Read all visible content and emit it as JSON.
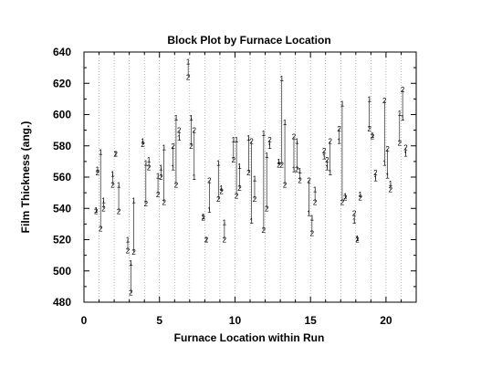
{
  "chart_data": {
    "type": "scatter",
    "title": "Block Plot by Furnace Location",
    "xlabel": "Furnace Location within Run",
    "ylabel": "Film Thickness (ang.)",
    "xlim": [
      0,
      22
    ],
    "ylim": [
      480,
      640
    ],
    "x_ticks": [
      0,
      5,
      10,
      15,
      20
    ],
    "y_ticks": [
      480,
      500,
      520,
      540,
      560,
      580,
      600,
      620,
      640
    ],
    "grid": "vertical dotted lines at each run position",
    "marker_labels": [
      "1",
      "2"
    ],
    "series": [
      {
        "name": "1",
        "points": [
          [
            0.8,
            539
          ],
          [
            0.9,
            565
          ],
          [
            1.1,
            576
          ],
          [
            1.3,
            545
          ],
          [
            1.9,
            562
          ],
          [
            2.1,
            575
          ],
          [
            2.3,
            555
          ],
          [
            2.9,
            520
          ],
          [
            3.1,
            505
          ],
          [
            3.3,
            545
          ],
          [
            3.9,
            583
          ],
          [
            4.1,
            569
          ],
          [
            4.3,
            571
          ],
          [
            4.9,
            561
          ],
          [
            5.1,
            566
          ],
          [
            5.3,
            579
          ],
          [
            5.9,
            566
          ],
          [
            6.1,
            598
          ],
          [
            6.3,
            585
          ],
          [
            6.9,
            634
          ],
          [
            7.1,
            598
          ],
          [
            7.3,
            560
          ],
          [
            7.9,
            535
          ],
          [
            8.1,
            520
          ],
          [
            8.3,
            539
          ],
          [
            8.9,
            569
          ],
          [
            9.1,
            553
          ],
          [
            9.3,
            531
          ],
          [
            9.9,
            584
          ],
          [
            10.1,
            584
          ],
          [
            10.3,
            567
          ],
          [
            10.9,
            585
          ],
          [
            11.1,
            532
          ],
          [
            11.3,
            559
          ],
          [
            11.9,
            588
          ],
          [
            12.1,
            574
          ],
          [
            12.3,
            580
          ],
          [
            12.9,
            570
          ],
          [
            13.1,
            623
          ],
          [
            13.3,
            595
          ],
          [
            13.9,
            565
          ],
          [
            14.1,
            583
          ],
          [
            14.3,
            564
          ],
          [
            14.9,
            537
          ],
          [
            15.1,
            534
          ],
          [
            15.3,
            552
          ],
          [
            15.9,
            573
          ],
          [
            16.1,
            566
          ],
          [
            16.3,
            563
          ],
          [
            16.9,
            583
          ],
          [
            17.1,
            607
          ],
          [
            17.3,
            548
          ],
          [
            17.9,
            532
          ],
          [
            18.1,
            521
          ],
          [
            18.3,
            549
          ],
          [
            18.9,
            610
          ],
          [
            19.1,
            587
          ],
          [
            19.3,
            559
          ],
          [
            19.9,
            569
          ],
          [
            20.1,
            561
          ],
          [
            20.3,
            556
          ],
          [
            20.9,
            601
          ],
          [
            21.1,
            598
          ],
          [
            21.3,
            575
          ]
        ]
      },
      {
        "name": "2",
        "points": [
          [
            0.8,
            538
          ],
          [
            0.9,
            563
          ],
          [
            1.1,
            527
          ],
          [
            1.3,
            540
          ],
          [
            1.9,
            555
          ],
          [
            2.1,
            575
          ],
          [
            2.3,
            538
          ],
          [
            2.9,
            513
          ],
          [
            3.1,
            486
          ],
          [
            3.3,
            512
          ],
          [
            3.9,
            581
          ],
          [
            4.1,
            543
          ],
          [
            4.3,
            566
          ],
          [
            4.9,
            549
          ],
          [
            5.1,
            560
          ],
          [
            5.3,
            544
          ],
          [
            5.9,
            580
          ],
          [
            6.1,
            555
          ],
          [
            6.3,
            590
          ],
          [
            6.9,
            624
          ],
          [
            7.1,
            580
          ],
          [
            7.3,
            590
          ],
          [
            7.9,
            534
          ],
          [
            8.1,
            520
          ],
          [
            8.3,
            558
          ],
          [
            8.9,
            546
          ],
          [
            9.1,
            551
          ],
          [
            9.3,
            520
          ],
          [
            9.9,
            571
          ],
          [
            10.1,
            548
          ],
          [
            10.3,
            553
          ],
          [
            10.9,
            563
          ],
          [
            11.1,
            583
          ],
          [
            11.3,
            546
          ],
          [
            11.9,
            526
          ],
          [
            12.1,
            540
          ],
          [
            12.3,
            584
          ],
          [
            12.9,
            568
          ],
          [
            13.1,
            568
          ],
          [
            13.3,
            555
          ],
          [
            13.9,
            586
          ],
          [
            14.1,
            565
          ],
          [
            14.3,
            558
          ],
          [
            14.9,
            558
          ],
          [
            15.1,
            524
          ],
          [
            15.3,
            544
          ],
          [
            15.9,
            577
          ],
          [
            16.1,
            571
          ],
          [
            16.3,
            583
          ],
          [
            16.9,
            591
          ],
          [
            17.1,
            544
          ],
          [
            17.3,
            547
          ],
          [
            17.9,
            537
          ],
          [
            18.1,
            520
          ],
          [
            18.3,
            547
          ],
          [
            18.9,
            591
          ],
          [
            19.1,
            586
          ],
          [
            19.3,
            563
          ],
          [
            19.9,
            609
          ],
          [
            20.1,
            578
          ],
          [
            20.3,
            552
          ],
          [
            20.9,
            582
          ],
          [
            21.1,
            616
          ],
          [
            21.3,
            579
          ]
        ]
      }
    ]
  }
}
